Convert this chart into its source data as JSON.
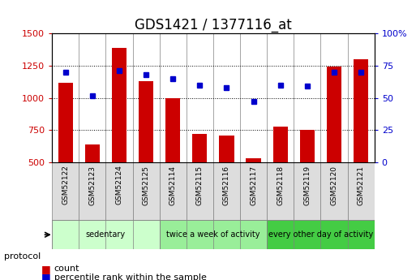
{
  "title": "GDS1421 / 1377116_at",
  "samples": [
    "GSM52122",
    "GSM52123",
    "GSM52124",
    "GSM52125",
    "GSM52114",
    "GSM52115",
    "GSM52116",
    "GSM52117",
    "GSM52118",
    "GSM52119",
    "GSM52120",
    "GSM52121"
  ],
  "counts": [
    1120,
    640,
    1390,
    1130,
    1000,
    720,
    710,
    530,
    775,
    755,
    1245,
    1300
  ],
  "percentiles": [
    70,
    52,
    71,
    68,
    65,
    60,
    58,
    47,
    60,
    59,
    70,
    70
  ],
  "ylim_left": [
    500,
    1500
  ],
  "ylim_right": [
    0,
    100
  ],
  "yticks_left": [
    500,
    750,
    1000,
    1250,
    1500
  ],
  "yticks_right": [
    0,
    25,
    50,
    75,
    100
  ],
  "bar_color": "#cc0000",
  "dot_color": "#0000cc",
  "groups": [
    {
      "label": "sedentary",
      "indices": [
        0,
        1,
        2,
        3
      ],
      "color": "#ccffcc"
    },
    {
      "label": "twice a week of activity",
      "indices": [
        4,
        5,
        6,
        7
      ],
      "color": "#99ee99"
    },
    {
      "label": "every other day of activity",
      "indices": [
        8,
        9,
        10,
        11
      ],
      "color": "#44cc44"
    }
  ],
  "protocol_label": "protocol",
  "legend_count": "count",
  "legend_percentile": "percentile rank within the sample",
  "xlabel_color": "#555555",
  "bg_color": "#ffffff",
  "grid_color": "#000000",
  "title_fontsize": 13,
  "tick_fontsize": 8,
  "bar_width": 0.55
}
